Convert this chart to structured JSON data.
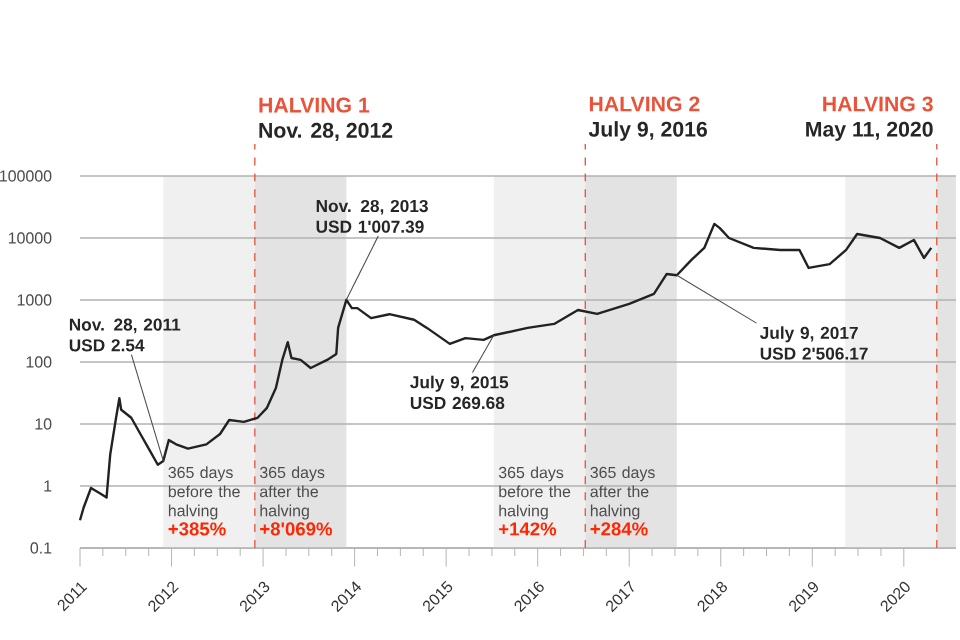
{
  "chart_data": {
    "type": "line",
    "log": "y",
    "grid": "y",
    "marker": "none",
    "line_style": "solid",
    "xlim": [
      2011,
      2020.57
    ],
    "xticks": [
      2011,
      2012,
      2013,
      2014,
      2015,
      2016,
      2017,
      2018,
      2019,
      2020
    ],
    "ylim": [
      0.1,
      100000
    ],
    "yticks": [
      0.1,
      1,
      10,
      100,
      1000,
      10000,
      100000
    ],
    "series": [
      {
        "color": "#222222",
        "x": [
          2011.0,
          2011.04,
          2011.12,
          2011.23,
          2011.29,
          2011.33,
          2011.39,
          2011.43,
          2011.45,
          2011.56,
          2011.66,
          2011.76,
          2011.85,
          2011.91,
          2011.97,
          2012.05,
          2012.18,
          2012.38,
          2012.53,
          2012.63,
          2012.79,
          2012.94,
          2013.04,
          2013.14,
          2013.21,
          2013.27,
          2013.31,
          2013.41,
          2013.52,
          2013.7,
          2013.8,
          2013.82,
          2013.91,
          2013.97,
          2014.03,
          2014.18,
          2014.38,
          2014.65,
          2014.79,
          2015.04,
          2015.21,
          2015.41,
          2015.52,
          2015.89,
          2016.18,
          2016.44,
          2016.65,
          2017.0,
          2017.27,
          2017.41,
          2017.52,
          2017.68,
          2017.82,
          2017.93,
          2017.99,
          2018.09,
          2018.36,
          2018.65,
          2018.86,
          2018.96,
          2019.19,
          2019.37,
          2019.49,
          2019.74,
          2019.95,
          2020.11,
          2020.22,
          2020.3
        ],
        "values": [
          0.28,
          0.45,
          0.93,
          0.74,
          0.65,
          3.2,
          11.6,
          26,
          17,
          12.6,
          6.9,
          3.8,
          2.2,
          2.54,
          5.5,
          4.7,
          4.0,
          4.7,
          6.9,
          11.6,
          10.8,
          12.6,
          18,
          38,
          108,
          209,
          116,
          108,
          80,
          108,
          135,
          355,
          1007.39,
          740,
          740,
          510,
          590,
          480,
          355,
          196,
          243,
          227,
          269.68,
          355,
          411,
          690,
          596,
          864,
          1254,
          2630,
          2506.17,
          4430,
          6920,
          16900,
          14400,
          10000,
          6920,
          6420,
          6420,
          3290,
          3800,
          6420,
          11600,
          10000,
          6920,
          9300,
          4770,
          6920
        ]
      }
    ],
    "ref_lines": [
      {
        "axis": "x",
        "value": 2012.91,
        "label": "HALVING 1",
        "color": "#e8533a",
        "line_style": "dashed"
      },
      {
        "axis": "x",
        "value": 2016.52,
        "label": "HALVING 2",
        "color": "#e8533a",
        "line_style": "dashed"
      },
      {
        "axis": "x",
        "value": 2020.36,
        "label": "HALVING 3",
        "color": "#e8533a",
        "line_style": "dashed"
      }
    ],
    "bands": [
      {
        "axis": "x",
        "from": 2011.91,
        "to": 2012.91,
        "label": "365 days before the halving",
        "color": "#f0f0f0"
      },
      {
        "axis": "x",
        "from": 2012.91,
        "to": 2013.91,
        "label": "365 days after the halving",
        "color": "#e3e3e3"
      },
      {
        "axis": "x",
        "from": 2015.52,
        "to": 2016.52,
        "label": "365 days before the halving",
        "color": "#f0f0f0"
      },
      {
        "axis": "x",
        "from": 2016.52,
        "to": 2017.52,
        "label": "365 days after the halving",
        "color": "#e3e3e3"
      },
      {
        "axis": "x",
        "from": 2019.36,
        "to": 2020.36,
        "color": "#f0f0f0"
      },
      {
        "axis": "x",
        "from": 2020.36,
        "to": 2020.57,
        "color": "#e3e3e3"
      }
    ],
    "annotations": [
      {
        "text": "Nov. 28, 2011 USD 2.54",
        "x": 2011.91,
        "y": 2.54
      },
      {
        "text": "Nov. 28, 2013 USD 1'007.39",
        "x": 2013.91,
        "y": 1007.39
      },
      {
        "text": "July 9, 2015 USD 269.68",
        "x": 2015.52,
        "y": 269.68
      },
      {
        "text": "July 9, 2017 USD 2'506.17",
        "x": 2017.52,
        "y": 2506.17
      },
      "Nov. 28, 2012",
      "July 9, 2016",
      "May 11, 2020",
      "+385%",
      "+8'069%",
      "+142%",
      "+284%"
    ]
  }
}
